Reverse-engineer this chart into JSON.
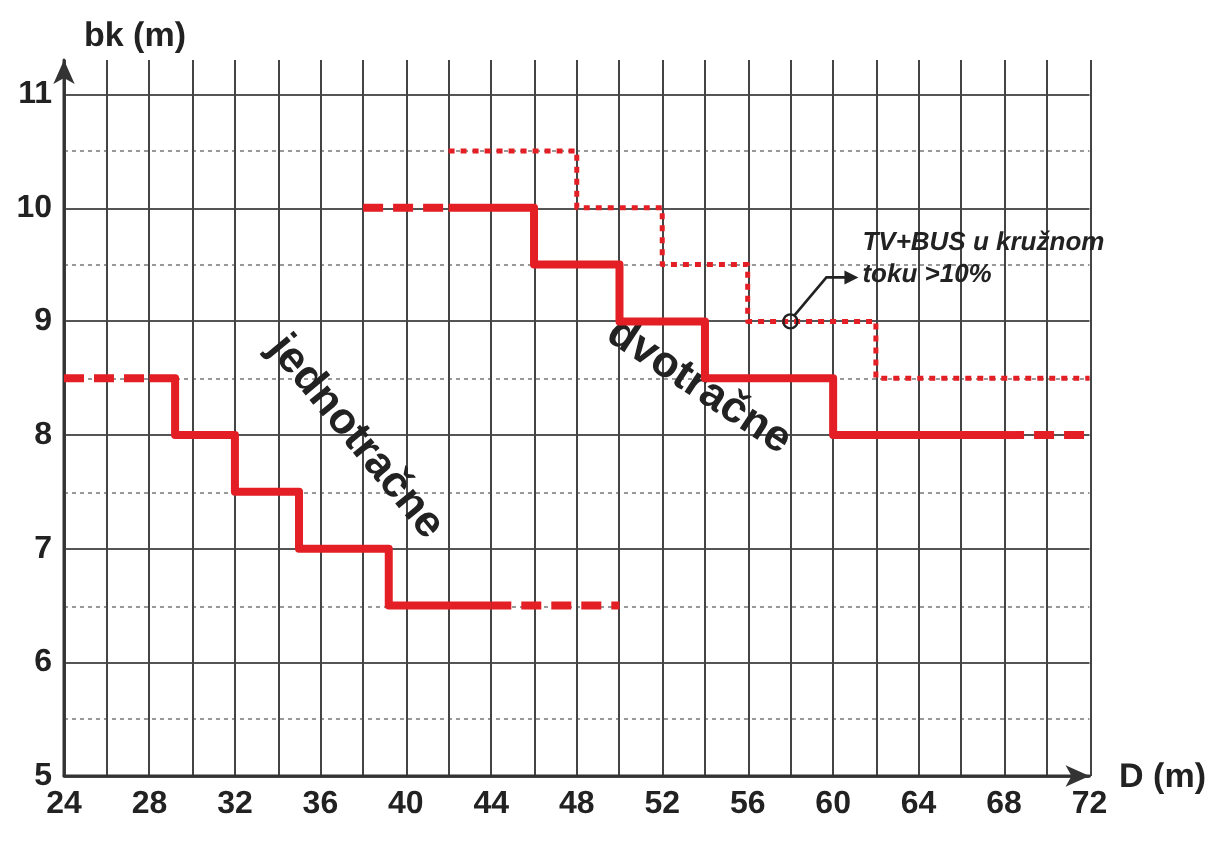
{
  "chart_data": {
    "type": "step",
    "xlabel": "D (m)",
    "ylabel": "bk (m)",
    "xlim": [
      24,
      72
    ],
    "ylim": [
      5,
      11.3
    ],
    "xticks": [
      24,
      28,
      32,
      36,
      40,
      44,
      48,
      52,
      56,
      60,
      64,
      68,
      72
    ],
    "yticks": [
      5,
      6,
      7,
      8,
      9,
      10,
      11
    ],
    "grid": true,
    "legend": false,
    "series": [
      {
        "name": "jednotračne",
        "color": "#e31e24",
        "line_style": "solid",
        "x": [
          28,
          29.2,
          32,
          35,
          39.2,
          44
        ],
        "values": [
          8.5,
          8,
          7.5,
          7,
          6.5,
          6.5
        ]
      },
      {
        "color": "#e31e24",
        "line_style": "dashed",
        "x": [
          24,
          28
        ],
        "values": [
          8.5,
          8.5
        ]
      },
      {
        "color": "#e31e24",
        "line_style": "dashed",
        "x": [
          44,
          50
        ],
        "values": [
          6.5,
          6.5
        ]
      },
      {
        "name": "dvotračne",
        "color": "#e31e24",
        "line_style": "solid",
        "x": [
          42,
          46,
          50,
          54,
          60,
          68
        ],
        "values": [
          10,
          9.5,
          9,
          8.5,
          8,
          8
        ]
      },
      {
        "color": "#e31e24",
        "line_style": "dashed",
        "x": [
          38,
          42
        ],
        "values": [
          10,
          10
        ]
      },
      {
        "color": "#e31e24",
        "line_style": "dashed",
        "x": [
          68,
          72
        ],
        "values": [
          8,
          8
        ]
      },
      {
        "color": "#e31e24",
        "line_style": "dotted",
        "x": [
          42,
          48,
          52,
          56,
          62,
          72
        ],
        "values": [
          10.5,
          10,
          9.5,
          9,
          8.5,
          8.5
        ]
      }
    ],
    "annotations": [
      {
        "text": "TV+BUS u kružnom toku >10%",
        "x": 58,
        "y": 9
      }
    ]
  }
}
